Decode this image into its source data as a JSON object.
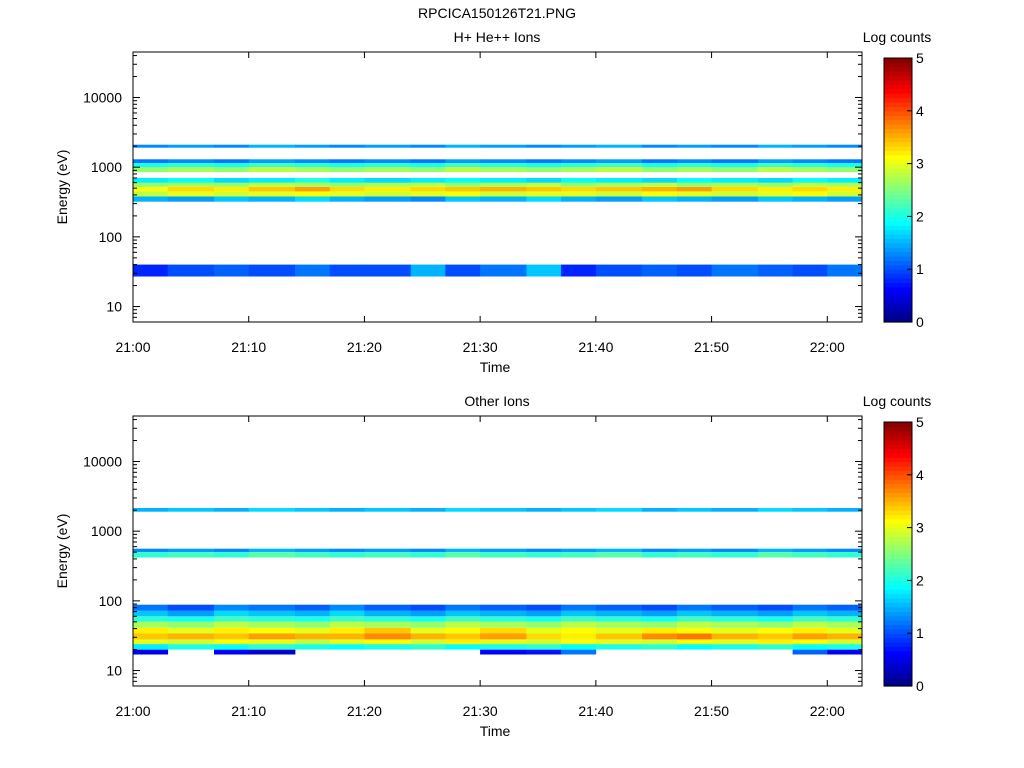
{
  "figure_title": "RPCICA150126T21.PNG",
  "chart_data": [
    {
      "type": "heatmap",
      "title": "H+ He++ Ions",
      "xlabel": "Time",
      "ylabel": "Energy (eV)",
      "x_ticks": [
        "21:00",
        "21:10",
        "21:20",
        "21:30",
        "21:40",
        "21:50",
        "22:00"
      ],
      "y_ticks": [
        "10",
        "100",
        "1000",
        "10000"
      ],
      "y_scale": "log",
      "ylim": [
        6,
        45000
      ],
      "xlim": [
        "21:00",
        "22:03"
      ],
      "colorbar_label": "Log counts",
      "colorbar_ticks": [
        "0",
        "1",
        "2",
        "3",
        "4",
        "5"
      ],
      "colorbar_range": [
        0,
        5
      ],
      "colormap": "jet",
      "grid": false,
      "time_bins": [
        "21:00",
        "21:03",
        "21:07",
        "21:10",
        "21:14",
        "21:17",
        "21:20",
        "21:24",
        "21:27",
        "21:30",
        "21:34",
        "21:37",
        "21:40",
        "21:44",
        "21:47",
        "21:50",
        "21:54",
        "21:57",
        "22:00"
      ],
      "energy_bands": [
        {
          "e_low": 27,
          "e_high": 40,
          "values": [
            0.8,
            1.0,
            1.1,
            1.0,
            1.2,
            1.0,
            1.0,
            1.5,
            1.0,
            1.2,
            1.6,
            0.8,
            1.0,
            1.1,
            1.0,
            1.2,
            1.1,
            1.0,
            1.2
          ]
        },
        {
          "e_low": 320,
          "e_high": 380,
          "values": [
            1.5,
            1.4,
            1.6,
            1.5,
            1.7,
            1.5,
            1.4,
            1.3,
            1.6,
            1.5,
            1.7,
            1.5,
            1.4,
            1.6,
            1.5,
            1.4,
            1.6,
            1.5,
            1.4
          ]
        },
        {
          "e_low": 380,
          "e_high": 450,
          "values": [
            2.8,
            3.0,
            2.9,
            3.0,
            3.1,
            3.0,
            2.9,
            3.0,
            3.1,
            2.9,
            3.0,
            3.0,
            2.9,
            3.1,
            3.0,
            2.9,
            3.0,
            3.1,
            2.9
          ]
        },
        {
          "e_low": 450,
          "e_high": 520,
          "values": [
            3.1,
            3.3,
            3.2,
            3.4,
            3.6,
            3.3,
            3.2,
            3.3,
            3.4,
            3.5,
            3.4,
            3.3,
            3.4,
            3.5,
            3.6,
            3.3,
            3.2,
            3.3,
            3.2
          ]
        },
        {
          "e_low": 520,
          "e_high": 600,
          "values": [
            2.6,
            2.7,
            2.6,
            2.8,
            2.7,
            2.6,
            2.7,
            2.8,
            2.6,
            2.7,
            2.8,
            2.6,
            2.7,
            2.8,
            2.6,
            2.7,
            2.6,
            2.8,
            2.7
          ]
        },
        {
          "e_low": 600,
          "e_high": 700,
          "values": [
            1.8,
            1.9,
            1.7,
            1.8,
            2.0,
            1.8,
            1.7,
            1.8,
            1.9,
            1.8,
            1.7,
            1.9,
            1.8,
            1.7,
            1.9,
            1.8,
            1.7,
            1.9,
            1.8
          ]
        },
        {
          "e_low": 850,
          "e_high": 1000,
          "values": [
            2.6,
            2.7,
            2.6,
            2.8,
            2.7,
            2.6,
            2.7,
            2.6,
            2.8,
            2.7,
            2.6,
            2.7,
            2.8,
            2.6,
            2.7,
            2.6,
            2.8,
            2.7,
            2.6
          ]
        },
        {
          "e_low": 1000,
          "e_high": 1150,
          "values": [
            2.0,
            2.1,
            2.0,
            2.2,
            2.1,
            2.0,
            2.1,
            2.0,
            2.2,
            2.1,
            2.0,
            2.1,
            2.2,
            2.0,
            2.1,
            2.0,
            2.2,
            2.1,
            2.0
          ]
        },
        {
          "e_low": 1150,
          "e_high": 1300,
          "values": [
            1.2,
            1.3,
            1.2,
            1.4,
            1.3,
            1.2,
            1.3,
            1.2,
            1.4,
            1.3,
            1.2,
            1.3,
            1.4,
            1.2,
            1.3,
            1.2,
            1.4,
            1.3,
            1.2
          ]
        },
        {
          "e_low": 1900,
          "e_high": 2100,
          "values": [
            1.3,
            1.4,
            1.3,
            1.5,
            1.4,
            1.3,
            1.4,
            1.3,
            1.5,
            1.4,
            1.3,
            1.4,
            1.5,
            1.3,
            1.4,
            1.3,
            1.5,
            1.4,
            1.3
          ]
        }
      ]
    },
    {
      "type": "heatmap",
      "title": "Other Ions",
      "xlabel": "Time",
      "ylabel": "Energy (eV)",
      "x_ticks": [
        "21:00",
        "21:10",
        "21:20",
        "21:30",
        "21:40",
        "21:50",
        "22:00"
      ],
      "y_ticks": [
        "10",
        "100",
        "1000",
        "10000"
      ],
      "y_scale": "log",
      "ylim": [
        6,
        45000
      ],
      "xlim": [
        "21:00",
        "22:03"
      ],
      "colorbar_label": "Log counts",
      "colorbar_ticks": [
        "0",
        "1",
        "2",
        "3",
        "4",
        "5"
      ],
      "colorbar_range": [
        0,
        5
      ],
      "colormap": "jet",
      "grid": false,
      "time_bins": [
        "21:00",
        "21:03",
        "21:07",
        "21:10",
        "21:14",
        "21:17",
        "21:20",
        "21:24",
        "21:27",
        "21:30",
        "21:34",
        "21:37",
        "21:40",
        "21:44",
        "21:47",
        "21:50",
        "21:54",
        "21:57",
        "22:00"
      ],
      "energy_bands": [
        {
          "e_low": 17,
          "e_high": 20,
          "values": [
            0.5,
            0,
            0.6,
            0.4,
            0,
            0,
            0,
            0,
            0,
            0.6,
            0.7,
            1.2,
            0,
            0,
            0,
            0,
            0,
            1.1,
            0.6
          ]
        },
        {
          "e_low": 20,
          "e_high": 24,
          "values": [
            1.8,
            2.0,
            1.9,
            2.1,
            2.0,
            1.9,
            2.0,
            2.1,
            1.9,
            2.0,
            2.1,
            1.9,
            2.0,
            2.1,
            1.9,
            2.0,
            2.1,
            1.9,
            2.0
          ]
        },
        {
          "e_low": 24,
          "e_high": 28,
          "values": [
            3.0,
            2.9,
            3.1,
            3.0,
            2.8,
            3.0,
            3.1,
            2.9,
            3.2,
            3.0,
            2.9,
            3.1,
            3.0,
            2.9,
            3.1,
            3.0,
            3.2,
            3.1,
            2.9
          ]
        },
        {
          "e_low": 28,
          "e_high": 34,
          "values": [
            3.4,
            3.5,
            3.4,
            3.6,
            3.5,
            3.5,
            3.7,
            3.5,
            3.4,
            3.6,
            3.3,
            3.2,
            3.4,
            3.7,
            3.8,
            3.5,
            3.4,
            3.6,
            3.5
          ]
        },
        {
          "e_low": 34,
          "e_high": 41,
          "values": [
            3.2,
            3.0,
            3.2,
            3.1,
            3.0,
            3.2,
            3.4,
            3.0,
            3.1,
            3.3,
            3.0,
            3.1,
            3.0,
            3.2,
            3.1,
            3.0,
            3.1,
            3.2,
            3.0
          ]
        },
        {
          "e_low": 41,
          "e_high": 50,
          "values": [
            2.7,
            2.6,
            2.8,
            2.7,
            2.6,
            2.8,
            2.7,
            2.6,
            2.8,
            2.7,
            2.6,
            2.8,
            2.7,
            2.6,
            2.8,
            2.7,
            2.6,
            2.8,
            2.7
          ]
        },
        {
          "e_low": 50,
          "e_high": 60,
          "values": [
            2.1,
            2.0,
            2.2,
            2.1,
            2.0,
            2.2,
            2.1,
            2.0,
            2.2,
            2.1,
            2.0,
            2.2,
            2.1,
            2.0,
            2.2,
            2.1,
            2.0,
            2.2,
            2.1
          ]
        },
        {
          "e_low": 60,
          "e_high": 72,
          "values": [
            1.6,
            1.4,
            1.7,
            1.6,
            1.5,
            1.7,
            1.5,
            1.4,
            1.6,
            1.5,
            1.4,
            1.6,
            1.5,
            1.4,
            1.6,
            1.5,
            1.4,
            1.6,
            1.5
          ]
        },
        {
          "e_low": 72,
          "e_high": 88,
          "values": [
            1.2,
            1.0,
            1.3,
            1.2,
            1.1,
            1.3,
            1.1,
            1.0,
            1.2,
            1.1,
            1.0,
            1.2,
            1.1,
            1.0,
            1.2,
            1.1,
            1.0,
            1.2,
            1.1
          ]
        },
        {
          "e_low": 420,
          "e_high": 500,
          "values": [
            2.1,
            2.2,
            2.1,
            2.3,
            2.2,
            2.1,
            2.2,
            2.1,
            2.3,
            2.2,
            2.1,
            2.2,
            2.3,
            2.1,
            2.2,
            2.1,
            2.3,
            2.2,
            2.1
          ]
        },
        {
          "e_low": 500,
          "e_high": 560,
          "values": [
            1.3,
            1.4,
            1.3,
            1.5,
            1.4,
            1.3,
            1.4,
            1.3,
            1.5,
            1.4,
            1.3,
            1.4,
            1.5,
            1.3,
            1.4,
            1.3,
            1.5,
            1.4,
            1.3
          ]
        },
        {
          "e_low": 1900,
          "e_high": 2150,
          "values": [
            1.5,
            1.6,
            1.5,
            1.7,
            1.6,
            1.5,
            1.6,
            1.5,
            1.7,
            1.6,
            1.5,
            1.6,
            1.7,
            1.5,
            1.6,
            1.5,
            1.7,
            1.6,
            1.5
          ]
        }
      ]
    }
  ]
}
